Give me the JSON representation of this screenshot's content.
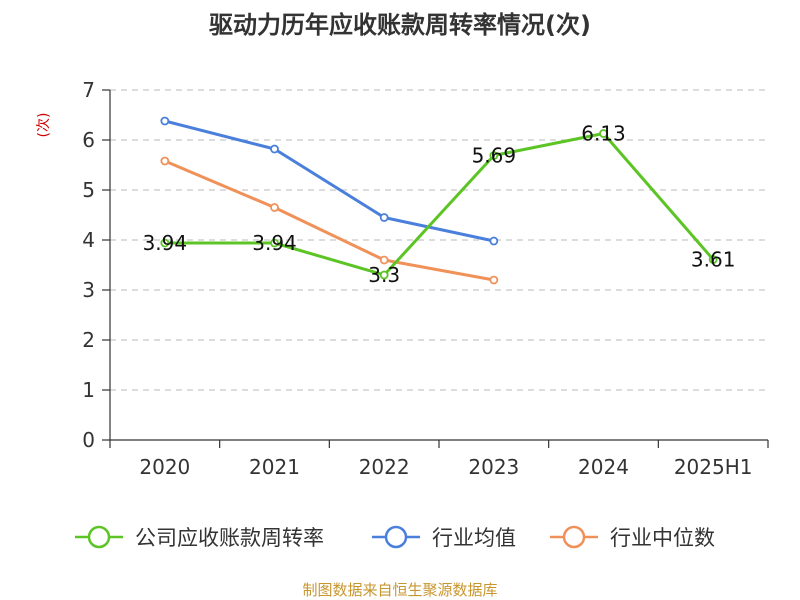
{
  "chart_data": {
    "type": "line",
    "title": "驱动力历年应收账款周转率情况(次)",
    "ylabel": "(次)",
    "categories": [
      "2020",
      "2021",
      "2022",
      "2023",
      "2024",
      "2025H1"
    ],
    "ylim": [
      0,
      7
    ],
    "yticks": [
      "0",
      "1",
      "2",
      "3",
      "4",
      "5",
      "6",
      "7"
    ],
    "grid": true,
    "legend_position": "bottom",
    "series": [
      {
        "name": "公司应收账款周转率",
        "color": "#5cc424",
        "values": [
          3.94,
          3.94,
          3.3,
          5.69,
          6.13,
          3.61
        ],
        "labels": [
          "3.94",
          "3.94",
          "3.3",
          "5.69",
          "6.13",
          "3.61"
        ]
      },
      {
        "name": "行业均值",
        "color": "#4a7fdc",
        "values": [
          6.38,
          5.82,
          4.45,
          3.98,
          null,
          null
        ]
      },
      {
        "name": "行业中位数",
        "color": "#f0915a",
        "values": [
          5.58,
          4.65,
          3.6,
          3.2,
          null,
          null
        ]
      }
    ],
    "source": "制图数据来自恒生聚源数据库"
  }
}
